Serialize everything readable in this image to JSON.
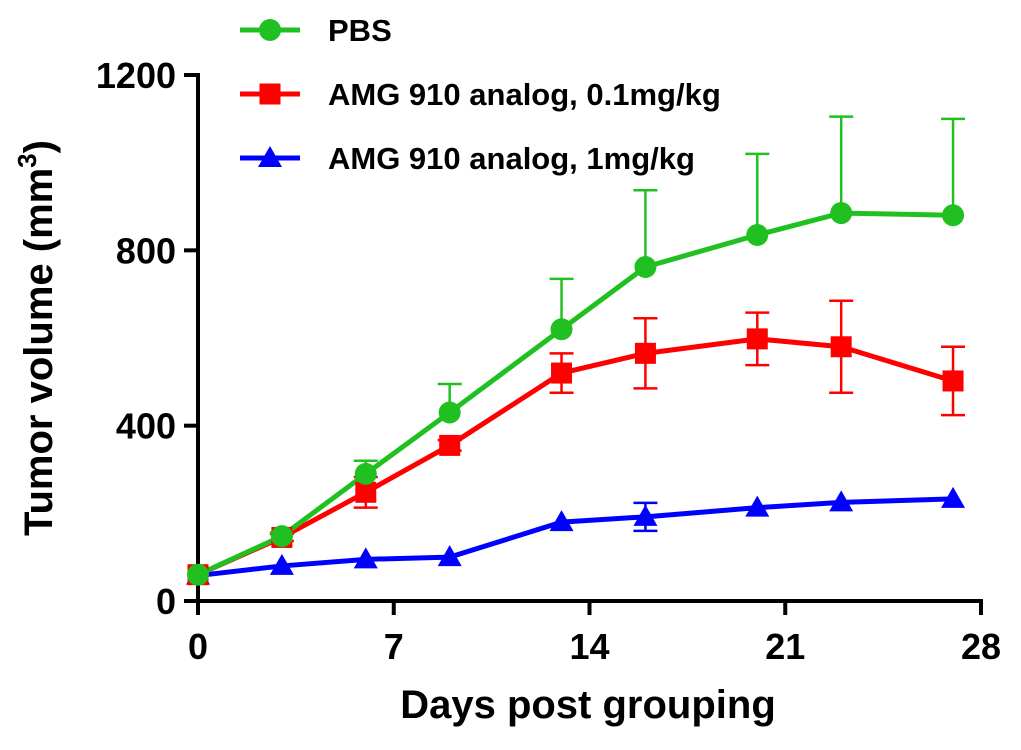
{
  "chart_data": {
    "type": "line",
    "title": "",
    "xlabel": "Days post grouping",
    "ylabel": {
      "main": "Tumor volume (mm",
      "superscript": "3",
      "close": ")"
    },
    "xlim": [
      0,
      28
    ],
    "ylim": [
      0,
      1200
    ],
    "xticks": [
      0,
      7,
      14,
      21,
      28
    ],
    "xtick_labels": [
      "0",
      "7",
      "14",
      "21",
      "28"
    ],
    "yticks": [
      0,
      400,
      800,
      1200
    ],
    "ytick_labels": [
      "0",
      "400",
      "800",
      "1200"
    ],
    "grid": false,
    "legend_position": "top-left",
    "series": [
      {
        "name": "PBS",
        "color": "#21c021",
        "marker": "circle",
        "x": [
          0,
          3,
          6,
          9,
          13,
          16,
          20,
          23,
          27
        ],
        "y": [
          60,
          148,
          290,
          430,
          620,
          762,
          835,
          885,
          880
        ],
        "error": [
          0,
          8,
          30,
          65,
          115,
          175,
          185,
          220,
          220
        ]
      },
      {
        "name": "AMG 910 analog, 0.1mg/kg",
        "color": "#ff0000",
        "marker": "square",
        "x": [
          0,
          3,
          6,
          9,
          13,
          16,
          20,
          23,
          27
        ],
        "y": [
          60,
          145,
          248,
          355,
          520,
          565,
          598,
          580,
          502
        ],
        "error": [
          0,
          8,
          35,
          12,
          45,
          80,
          60,
          105,
          78
        ]
      },
      {
        "name": "AMG 910 analog, 1mg/kg",
        "color": "#0000ff",
        "marker": "triangle",
        "x": [
          0,
          3,
          6,
          9,
          13,
          16,
          20,
          23,
          27
        ],
        "y": [
          58,
          80,
          95,
          100,
          180,
          192,
          213,
          225,
          233
        ],
        "error": [
          0,
          0,
          0,
          0,
          0,
          32,
          0,
          0,
          0
        ]
      }
    ]
  }
}
